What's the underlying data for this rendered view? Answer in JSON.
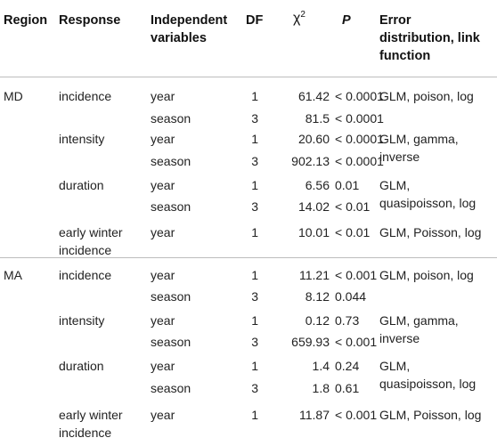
{
  "headers": {
    "region": "Region",
    "response": "Response",
    "indep_line1": "Independent",
    "indep_line2": "variables",
    "df": "DF",
    "chi_base": "χ",
    "chi_sup": "2",
    "p": "P",
    "err_line1": "Error",
    "err_line2": "distribution, link",
    "err_line3": "function"
  },
  "rows": [
    {
      "region": "MD",
      "response": "incidence",
      "variable": "year",
      "df": "1",
      "chi2": "61.42",
      "p": "< 0.0001",
      "err1": "GLM, poison, log",
      "err2": ""
    },
    {
      "region": "",
      "response": "",
      "variable": "season",
      "df": "3",
      "chi2": "81.5",
      "p": "< 0.0001",
      "err1": "",
      "err2": ""
    },
    {
      "region": "",
      "response": "intensity",
      "variable": "year",
      "df": "1",
      "chi2": "20.60",
      "p": "< 0.0001",
      "err1": "GLM, gamma,",
      "err2": "inverse"
    },
    {
      "region": "",
      "response": "",
      "variable": "season",
      "df": "3",
      "chi2": "902.13",
      "p": "< 0.0001",
      "err1": "",
      "err2": ""
    },
    {
      "region": "",
      "response": "duration",
      "variable": "year",
      "df": "1",
      "chi2": "6.56",
      "p": "0.01",
      "err1": "GLM,",
      "err2": "quasipoisson, log"
    },
    {
      "region": "",
      "response": "",
      "variable": "season",
      "df": "3",
      "chi2": "14.02",
      "p": "< 0.01",
      "err1": "",
      "err2": ""
    },
    {
      "region": "",
      "response": "early winter",
      "response2": "incidence",
      "variable": "year",
      "df": "1",
      "chi2": "10.01",
      "p": "< 0.01",
      "err1": "GLM, Poisson, log",
      "err2": ""
    },
    {
      "region": "MA",
      "response": "incidence",
      "variable": "year",
      "df": "1",
      "chi2": "11.21",
      "p": "< 0.001",
      "err1": "GLM, poison, log",
      "err2": ""
    },
    {
      "region": "",
      "response": "",
      "variable": "season",
      "df": "3",
      "chi2": "8.12",
      "p": "0.044",
      "err1": "",
      "err2": ""
    },
    {
      "region": "",
      "response": "intensity",
      "variable": "year",
      "df": "1",
      "chi2": "0.12",
      "p": "0.73",
      "err1": "GLM, gamma,",
      "err2": "inverse"
    },
    {
      "region": "",
      "response": "",
      "variable": "season",
      "df": "3",
      "chi2": "659.93",
      "p": "< 0.001",
      "err1": "",
      "err2": ""
    },
    {
      "region": "",
      "response": "duration",
      "variable": "year",
      "df": "1",
      "chi2": "1.4",
      "p": "0.24",
      "err1": "GLM,",
      "err2": "quasipoisson, log"
    },
    {
      "region": "",
      "response": "",
      "variable": "season",
      "df": "3",
      "chi2": "1.8",
      "p": "0.61",
      "err1": "",
      "err2": ""
    },
    {
      "region": "",
      "response": "early winter",
      "response2": "incidence",
      "variable": "year",
      "df": "1",
      "chi2": "11.87",
      "p": "< 0.001",
      "err1": "GLM, Poisson, log",
      "err2": ""
    }
  ]
}
